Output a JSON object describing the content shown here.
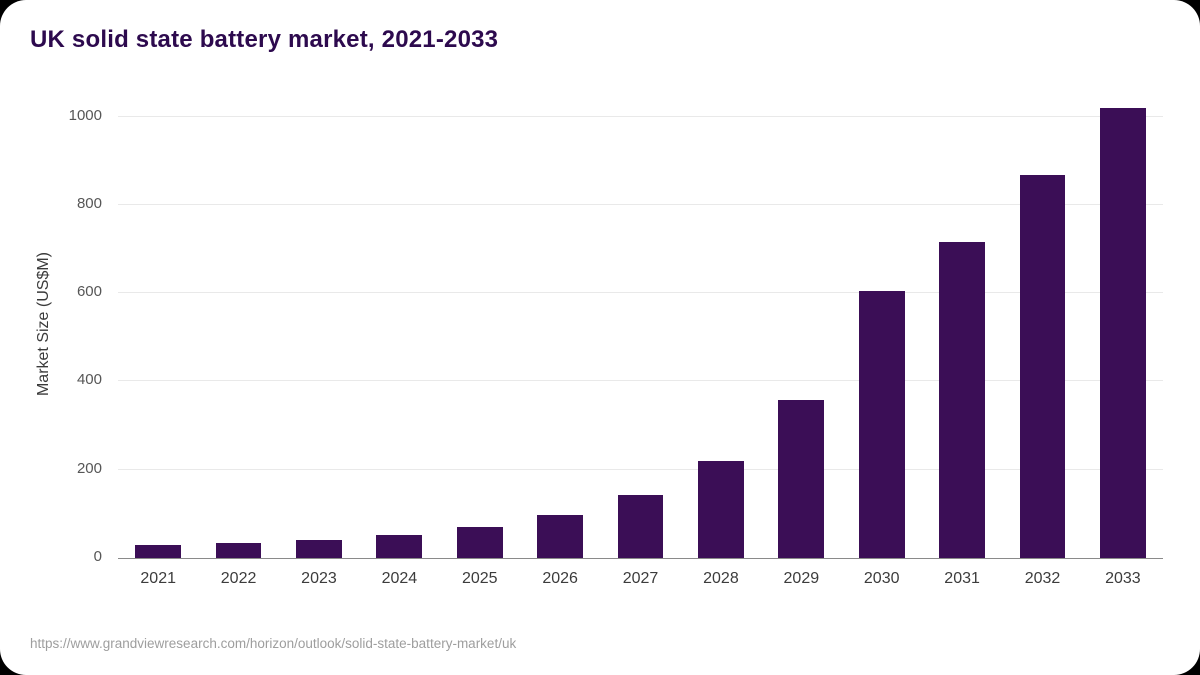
{
  "title": "UK solid state battery market, 2021-2033",
  "footer": {
    "source_url": "https://www.grandviewresearch.com/horizon/outlook/solid-state-battery-market/uk"
  },
  "colors": {
    "bar": "#3b0e56",
    "title": "#2d0a4e",
    "gridline": "#e9e9e9",
    "axis_line": "#8a8a8a",
    "tick_text": "#565656",
    "background": "#ffffff"
  },
  "chart_data": {
    "type": "bar",
    "title": "UK solid state battery market, 2021-2033",
    "categories": [
      "2021",
      "2022",
      "2023",
      "2024",
      "2025",
      "2026",
      "2027",
      "2028",
      "2029",
      "2030",
      "2031",
      "2032",
      "2033"
    ],
    "values": [
      30,
      35,
      41,
      52,
      70,
      97,
      143,
      220,
      358,
      605,
      715,
      868,
      1020
    ],
    "xlabel": "",
    "ylabel": "Market Size (US$M)",
    "ylim": [
      0,
      1060
    ],
    "yticks": [
      0,
      200,
      400,
      600,
      800,
      1000
    ],
    "grid": true,
    "legend": "none",
    "bar_color": "#3b0e56"
  }
}
